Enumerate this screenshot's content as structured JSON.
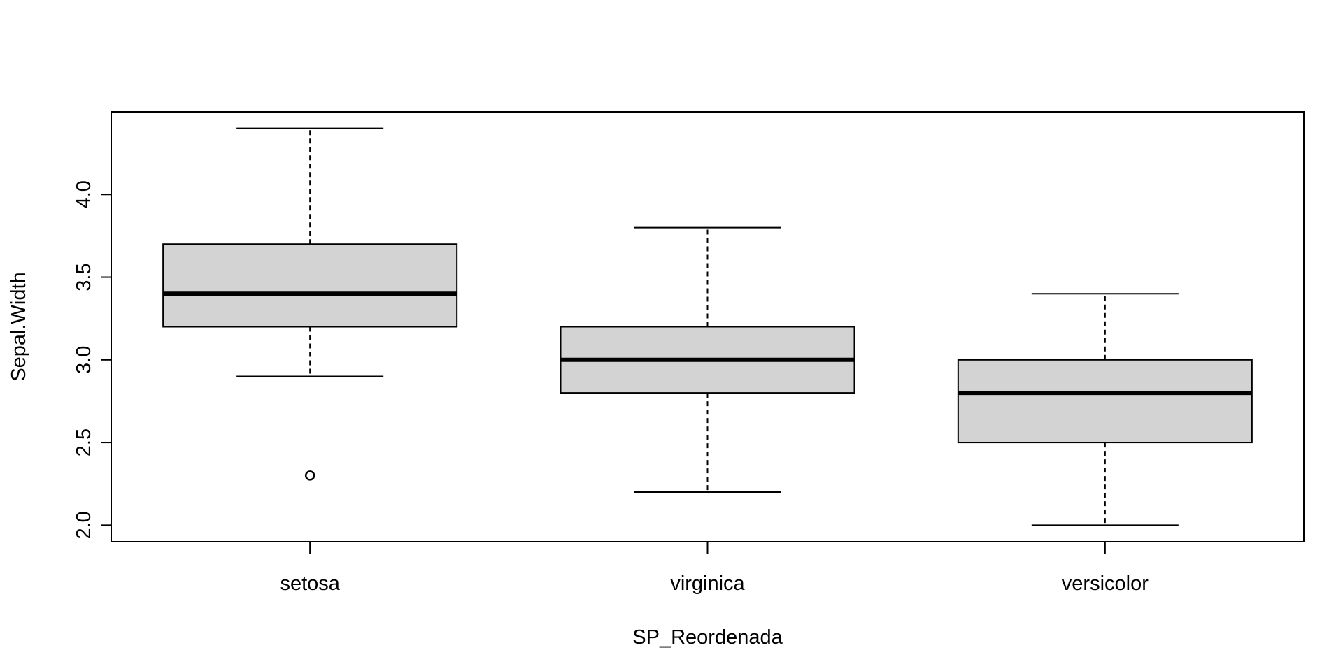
{
  "chart_data": {
    "type": "boxplot",
    "xlabel": "SP_Reordenada",
    "ylabel": "Sepal.Width",
    "categories": [
      "setosa",
      "virginica",
      "versicolor"
    ],
    "boxes": [
      {
        "category": "setosa",
        "whisker_low": 2.9,
        "q1": 3.2,
        "median": 3.4,
        "q3": 3.7,
        "whisker_high": 4.4,
        "outliers": [
          2.3
        ]
      },
      {
        "category": "virginica",
        "whisker_low": 2.2,
        "q1": 2.8,
        "median": 3.0,
        "q3": 3.2,
        "whisker_high": 3.8,
        "outliers": []
      },
      {
        "category": "versicolor",
        "whisker_low": 2.0,
        "q1": 2.5,
        "median": 2.8,
        "q3": 3.0,
        "whisker_high": 3.4,
        "outliers": []
      }
    ],
    "y_ticks": [
      "2.0",
      "2.5",
      "3.0",
      "3.5",
      "4.0"
    ],
    "ylim": [
      1.9,
      4.5
    ],
    "grid": false,
    "legend": "none",
    "colors": {
      "box_fill": "#d3d3d3",
      "stroke": "#000000",
      "background": "#ffffff"
    }
  }
}
